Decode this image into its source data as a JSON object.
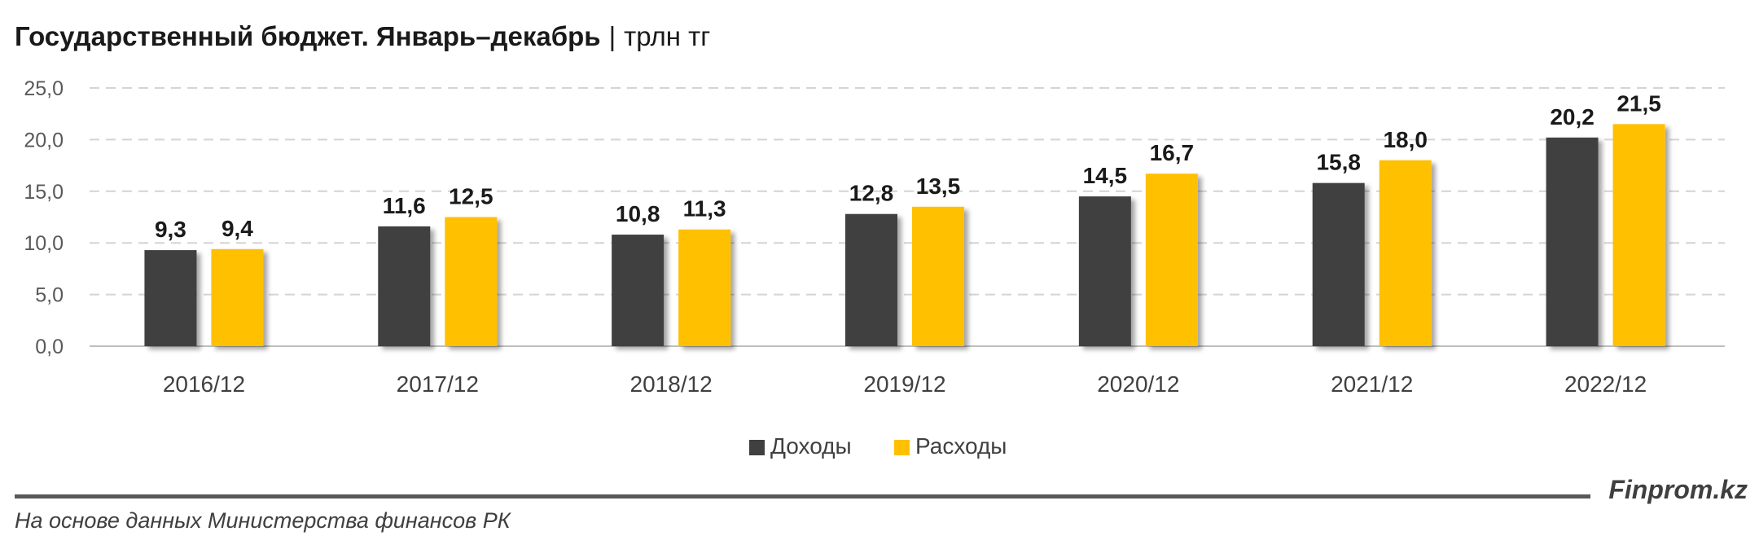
{
  "header": {
    "title": "Государственный бюджет. Январь–декабрь",
    "separator": "|",
    "unit": "трлн тг"
  },
  "footer": {
    "source": "На основе данных Министерства финансов РК",
    "brand": "Finprom.kz"
  },
  "chart_data": {
    "type": "bar",
    "title": "Государственный бюджет. Январь–декабрь",
    "unit": "трлн тг",
    "categories": [
      "2016/12",
      "2017/12",
      "2018/12",
      "2019/12",
      "2020/12",
      "2021/12",
      "2022/12"
    ],
    "series": [
      {
        "name": "Доходы",
        "color": "#404040",
        "values": [
          9.3,
          11.6,
          10.8,
          12.8,
          14.5,
          15.8,
          20.2
        ],
        "labels": [
          "9,3",
          "11,6",
          "10,8",
          "12,8",
          "14,5",
          "15,8",
          "20,2"
        ]
      },
      {
        "name": "Расходы",
        "color": "#ffc000",
        "values": [
          9.4,
          12.5,
          11.3,
          13.5,
          16.7,
          18.0,
          21.5
        ],
        "labels": [
          "9,4",
          "12,5",
          "11,3",
          "13,5",
          "16,7",
          "18,0",
          "21,5"
        ]
      }
    ],
    "ylim": [
      0,
      25
    ],
    "yticks": [
      0,
      5,
      10,
      15,
      20,
      25
    ],
    "ytick_labels": [
      "0,0",
      "5,0",
      "10,0",
      "15,0",
      "20,0",
      "25,0"
    ],
    "grid": true,
    "legend_position": "bottom"
  }
}
